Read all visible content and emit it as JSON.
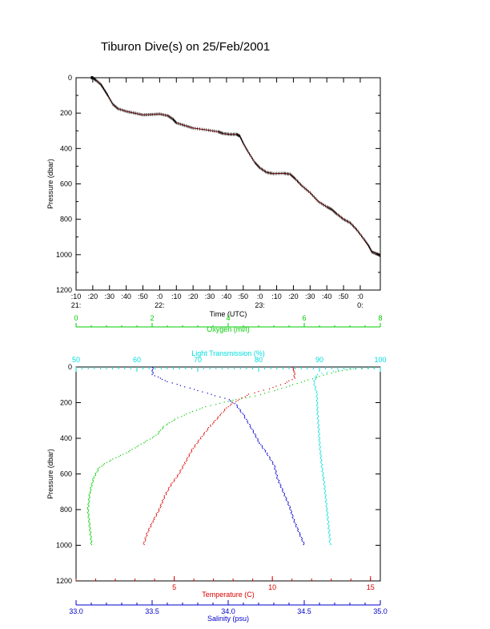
{
  "title": "Tiburon Dive(s) on 25/Feb/2001",
  "chart_data": [
    {
      "type": "line",
      "title": "Tiburon Dive(s) on 25/Feb/2001",
      "xlabel": "Time (UTC)",
      "ylabel": "Pressure (dbar)",
      "ylim": [
        1200,
        0
      ],
      "yticks": [
        "0",
        "200",
        "400",
        "600",
        "800",
        "1000",
        "1200"
      ],
      "xlim_minutes": [
        10,
        192
      ],
      "xticks": [
        {
          "m": 10,
          "label": ":10",
          "hour": "21:"
        },
        {
          "m": 20,
          "label": ":20",
          "hour": ""
        },
        {
          "m": 30,
          "label": ":30",
          "hour": ""
        },
        {
          "m": 40,
          "label": ":40",
          "hour": ""
        },
        {
          "m": 50,
          "label": ":50",
          "hour": ""
        },
        {
          "m": 60,
          "label": ":0",
          "hour": "22:"
        },
        {
          "m": 70,
          "label": ":10",
          "hour": ""
        },
        {
          "m": 80,
          "label": ":20",
          "hour": ""
        },
        {
          "m": 90,
          "label": ":30",
          "hour": ""
        },
        {
          "m": 100,
          "label": ":40",
          "hour": ""
        },
        {
          "m": 110,
          "label": ":50",
          "hour": ""
        },
        {
          "m": 120,
          "label": ":0",
          "hour": "23:"
        },
        {
          "m": 130,
          "label": ":10",
          "hour": ""
        },
        {
          "m": 140,
          "label": ":20",
          "hour": ""
        },
        {
          "m": 150,
          "label": ":30",
          "hour": ""
        },
        {
          "m": 160,
          "label": ":40",
          "hour": ""
        },
        {
          "m": 170,
          "label": ":50",
          "hour": ""
        },
        {
          "m": 180,
          "label": ":0",
          "hour": "0:"
        }
      ],
      "series": [
        {
          "color": "#8b0000",
          "points": [
            [
              19,
              0
            ],
            [
              20,
              0
            ],
            [
              22,
              15
            ],
            [
              25,
              40
            ],
            [
              27,
              70
            ],
            [
              29,
              100
            ],
            [
              32,
              150
            ],
            [
              35,
              175
            ],
            [
              40,
              190
            ],
            [
              45,
              200
            ],
            [
              50,
              210
            ],
            [
              55,
              208
            ],
            [
              60,
              205
            ],
            [
              65,
              215
            ],
            [
              68,
              235
            ],
            [
              70,
              255
            ],
            [
              75,
              270
            ],
            [
              80,
              285
            ],
            [
              88,
              295
            ],
            [
              95,
              305
            ],
            [
              98,
              315
            ],
            [
              102,
              320
            ],
            [
              106,
              320
            ],
            [
              108,
              330
            ],
            [
              110,
              370
            ],
            [
              113,
              420
            ],
            [
              117,
              480
            ],
            [
              120,
              510
            ],
            [
              124,
              535
            ],
            [
              128,
              542
            ],
            [
              134,
              540
            ],
            [
              138,
              545
            ],
            [
              141,
              570
            ],
            [
              145,
              610
            ],
            [
              150,
              650
            ],
            [
              155,
              700
            ],
            [
              160,
              730
            ],
            [
              163,
              745
            ],
            [
              166,
              770
            ],
            [
              170,
              800
            ],
            [
              174,
              820
            ],
            [
              178,
              860
            ],
            [
              182,
              910
            ],
            [
              185,
              950
            ],
            [
              187,
              985
            ],
            [
              190,
              995
            ],
            [
              192,
              1005
            ]
          ]
        }
      ]
    },
    {
      "type": "scatter",
      "ylabel": "Pressure (dbar)",
      "ylim": [
        1200,
        0
      ],
      "yticks": [
        "0",
        "200",
        "400",
        "600",
        "800",
        "1000",
        "1200"
      ],
      "axes": [
        {
          "label": "Oxygen (ml/l)",
          "color": "#00cc00",
          "range": [
            0,
            8
          ],
          "ticks": [
            "0",
            "2",
            "4",
            "6",
            "8"
          ],
          "ticks_values": [
            0,
            2,
            4,
            6,
            8
          ],
          "position": "top-outer"
        },
        {
          "label": "Light Transmission (%)",
          "color": "#00dddd",
          "range": [
            50,
            100
          ],
          "ticks": [
            "50",
            "60",
            "70",
            "80",
            "90",
            "100"
          ],
          "ticks_values": [
            50,
            60,
            70,
            80,
            90,
            100
          ],
          "position": "top-inner"
        },
        {
          "label": "Temperature (C)",
          "color": "#dd0000",
          "range": [
            0,
            15.5
          ],
          "ticks": [
            "5",
            "10",
            "15"
          ],
          "ticks_values": [
            5,
            10,
            15
          ],
          "position": "bottom-inner"
        },
        {
          "label": "Salinity (psu)",
          "color": "#0000cc",
          "range": [
            33.0,
            35.0
          ],
          "ticks": [
            "33.0",
            "33.5",
            "34.0",
            "34.5",
            "35.0"
          ],
          "ticks_values": [
            33.0,
            33.5,
            34.0,
            34.5,
            35.0
          ],
          "position": "bottom-outer"
        }
      ],
      "series": [
        {
          "axis": 0,
          "color": "#00cc00",
          "points": [
            [
              7.8,
              0
            ],
            [
              7.2,
              10
            ],
            [
              6.8,
              25
            ],
            [
              6.4,
              50
            ],
            [
              5.8,
              90
            ],
            [
              5.2,
              130
            ],
            [
              4.7,
              160
            ],
            [
              4.2,
              180
            ],
            [
              3.9,
              195
            ],
            [
              3.4,
              220
            ],
            [
              2.9,
              260
            ],
            [
              2.6,
              290
            ],
            [
              2.3,
              330
            ],
            [
              2.1,
              380
            ],
            [
              1.7,
              430
            ],
            [
              1.3,
              480
            ],
            [
              0.9,
              520
            ],
            [
              0.6,
              560
            ],
            [
              0.45,
              620
            ],
            [
              0.35,
              700
            ],
            [
              0.3,
              800
            ],
            [
              0.35,
              900
            ],
            [
              0.4,
              1000
            ]
          ]
        },
        {
          "axis": 1,
          "color": "#00dddd",
          "points": [
            [
              98,
              0
            ],
            [
              93,
              15
            ],
            [
              89.5,
              40
            ],
            [
              89,
              80
            ],
            [
              89.5,
              150
            ],
            [
              89.6,
              250
            ],
            [
              89.8,
              350
            ],
            [
              90,
              450
            ],
            [
              90.3,
              550
            ],
            [
              90.7,
              650
            ],
            [
              91,
              750
            ],
            [
              91.3,
              850
            ],
            [
              91.6,
              950
            ],
            [
              91.7,
              1000
            ]
          ]
        },
        {
          "axis": 2,
          "color": "#dd0000",
          "points": [
            [
              11.0,
              0
            ],
            [
              11.1,
              20
            ],
            [
              11.1,
              60
            ],
            [
              10.6,
              90
            ],
            [
              9.8,
              120
            ],
            [
              8.8,
              150
            ],
            [
              8.2,
              185
            ],
            [
              7.7,
              220
            ],
            [
              7.3,
              270
            ],
            [
              6.8,
              330
            ],
            [
              6.3,
              400
            ],
            [
              5.9,
              460
            ],
            [
              5.5,
              540
            ],
            [
              5.2,
              600
            ],
            [
              4.8,
              660
            ],
            [
              4.5,
              720
            ],
            [
              4.2,
              800
            ],
            [
              3.9,
              860
            ],
            [
              3.6,
              930
            ],
            [
              3.4,
              1000
            ]
          ]
        },
        {
          "axis": 3,
          "color": "#0000cc",
          "points": [
            [
              33.5,
              0
            ],
            [
              33.5,
              40
            ],
            [
              33.6,
              80
            ],
            [
              33.8,
              130
            ],
            [
              34.0,
              180
            ],
            [
              34.05,
              210
            ],
            [
              34.1,
              270
            ],
            [
              34.15,
              340
            ],
            [
              34.2,
              420
            ],
            [
              34.25,
              480
            ],
            [
              34.3,
              550
            ],
            [
              34.32,
              620
            ],
            [
              34.36,
              700
            ],
            [
              34.4,
              780
            ],
            [
              34.43,
              860
            ],
            [
              34.47,
              940
            ],
            [
              34.5,
              1000
            ]
          ]
        }
      ]
    }
  ]
}
